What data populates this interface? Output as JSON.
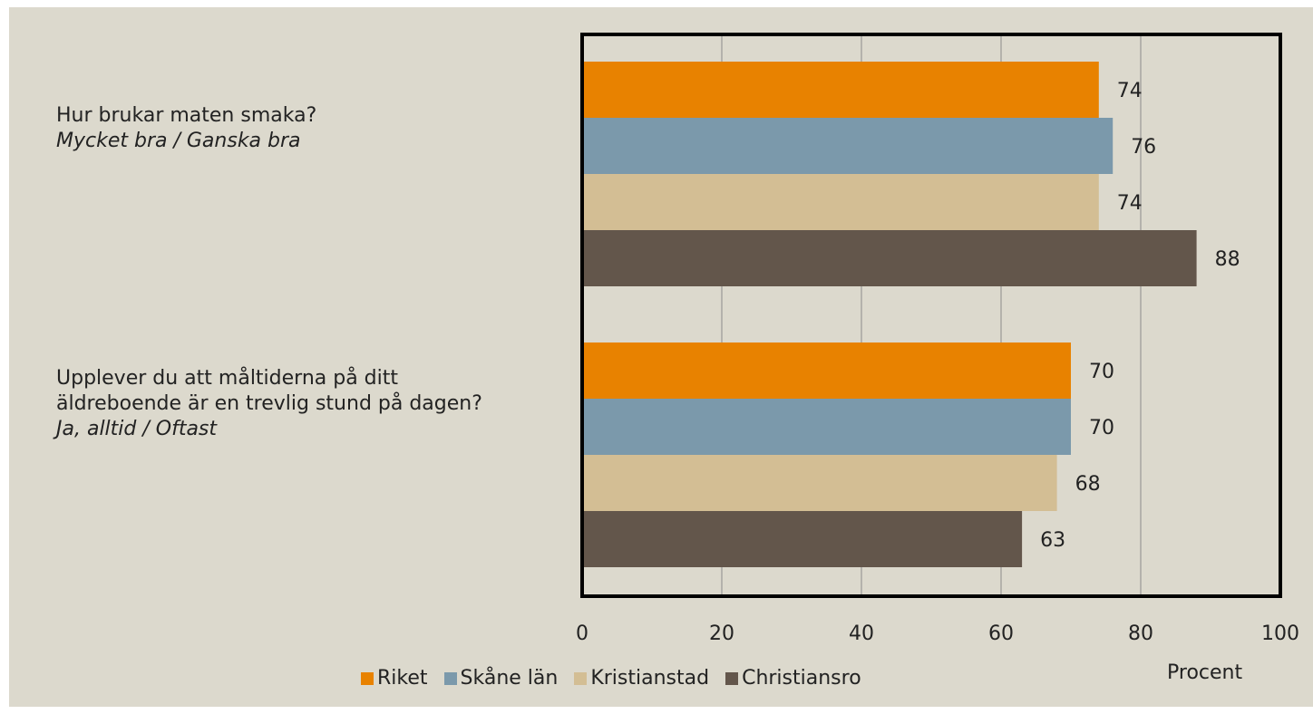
{
  "colors": {
    "background": "#dcd9cd",
    "grid": "#8c8c8c",
    "frame": "#000000"
  },
  "questions": [
    {
      "title": "Hur brukar maten smaka?",
      "answers": "Mycket bra / Ganska bra"
    },
    {
      "title": "Upplever du att måltiderna på ditt äldreboende är en trevlig stund på dagen?",
      "answers": "Ja, alltid / Oftast"
    }
  ],
  "chart_data": {
    "type": "bar",
    "orientation": "horizontal",
    "categories": [
      "Hur brukar maten smaka? Mycket bra / Ganska bra",
      "Upplever du att måltiderna på ditt äldreboende är en trevlig stund på dagen? Ja, alltid / Oftast"
    ],
    "series": [
      {
        "name": "Riket",
        "color": "#e88200",
        "values": [
          74,
          70
        ]
      },
      {
        "name": "Skåne län",
        "color": "#7b99ab",
        "values": [
          76,
          70
        ]
      },
      {
        "name": "Kristianstad",
        "color": "#d3be94",
        "values": [
          74,
          68
        ]
      },
      {
        "name": "Christiansro",
        "color": "#63564b",
        "values": [
          88,
          63
        ]
      }
    ],
    "xlim": [
      0,
      100
    ],
    "xticks": [
      "0",
      "20",
      "40",
      "60",
      "80",
      "100"
    ],
    "xlabel": "Procent",
    "grid": true,
    "legend": "bottom",
    "data_labels": true
  }
}
